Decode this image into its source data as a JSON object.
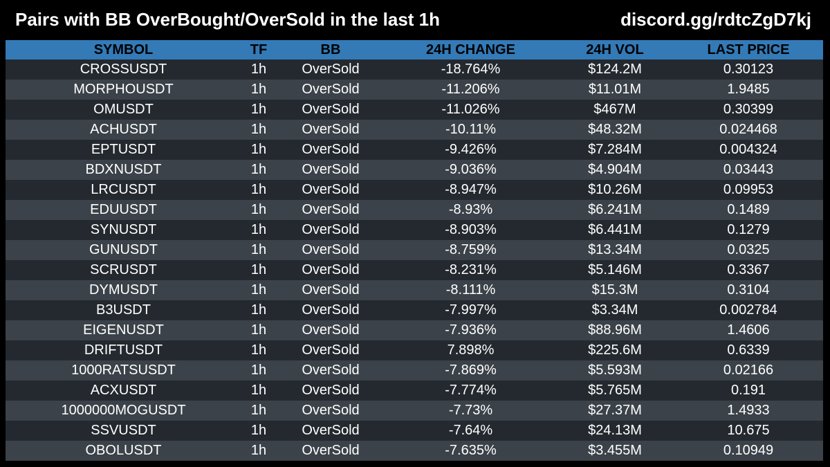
{
  "title": "Pairs with BB OverBought/OverSold in the last 1h",
  "discord": "discord.gg/rdtcZgD7kj",
  "colors": {
    "background": "#000000",
    "header_bg": "#337ab7",
    "row_odd": "#24292f",
    "row_even": "#3b4249"
  },
  "table": {
    "columns": [
      "SYMBOL",
      "TF",
      "BB",
      "24H CHANGE",
      "24H VOL",
      "LAST PRICE"
    ],
    "rows": [
      [
        "CROSSUSDT",
        "1h",
        "OverSold",
        "-18.764%",
        "$124.2M",
        "0.30123"
      ],
      [
        "MORPHOUSDT",
        "1h",
        "OverSold",
        "-11.206%",
        "$11.01M",
        "1.9485"
      ],
      [
        "OMUSDT",
        "1h",
        "OverSold",
        "-11.026%",
        "$467M",
        "0.30399"
      ],
      [
        "ACHUSDT",
        "1h",
        "OverSold",
        "-10.11%",
        "$48.32M",
        "0.024468"
      ],
      [
        "EPTUSDT",
        "1h",
        "OverSold",
        "-9.426%",
        "$7.284M",
        "0.004324"
      ],
      [
        "BDXNUSDT",
        "1h",
        "OverSold",
        "-9.036%",
        "$4.904M",
        "0.03443"
      ],
      [
        "LRCUSDT",
        "1h",
        "OverSold",
        "-8.947%",
        "$10.26M",
        "0.09953"
      ],
      [
        "EDUUSDT",
        "1h",
        "OverSold",
        "-8.93%",
        "$6.241M",
        "0.1489"
      ],
      [
        "SYNUSDT",
        "1h",
        "OverSold",
        "-8.903%",
        "$6.441M",
        "0.1279"
      ],
      [
        "GUNUSDT",
        "1h",
        "OverSold",
        "-8.759%",
        "$13.34M",
        "0.0325"
      ],
      [
        "SCRUSDT",
        "1h",
        "OverSold",
        "-8.231%",
        "$5.146M",
        "0.3367"
      ],
      [
        "DYMUSDT",
        "1h",
        "OverSold",
        "-8.111%",
        "$15.3M",
        "0.3104"
      ],
      [
        "B3USDT",
        "1h",
        "OverSold",
        "-7.997%",
        "$3.34M",
        "0.002784"
      ],
      [
        "EIGENUSDT",
        "1h",
        "OverSold",
        "-7.936%",
        "$88.96M",
        "1.4606"
      ],
      [
        "DRIFTUSDT",
        "1h",
        "OverSold",
        "7.898%",
        "$225.6M",
        "0.6339"
      ],
      [
        "1000RATSUSDT",
        "1h",
        "OverSold",
        "-7.869%",
        "$5.593M",
        "0.02166"
      ],
      [
        "ACXUSDT",
        "1h",
        "OverSold",
        "-7.774%",
        "$5.765M",
        "0.191"
      ],
      [
        "1000000MOGUSDT",
        "1h",
        "OverSold",
        "-7.73%",
        "$27.37M",
        "1.4933"
      ],
      [
        "SSVUSDT",
        "1h",
        "OverSold",
        "-7.64%",
        "$24.13M",
        "10.675"
      ],
      [
        "OBOLUSDT",
        "1h",
        "OverSold",
        "-7.635%",
        "$3.455M",
        "0.10949"
      ]
    ]
  }
}
